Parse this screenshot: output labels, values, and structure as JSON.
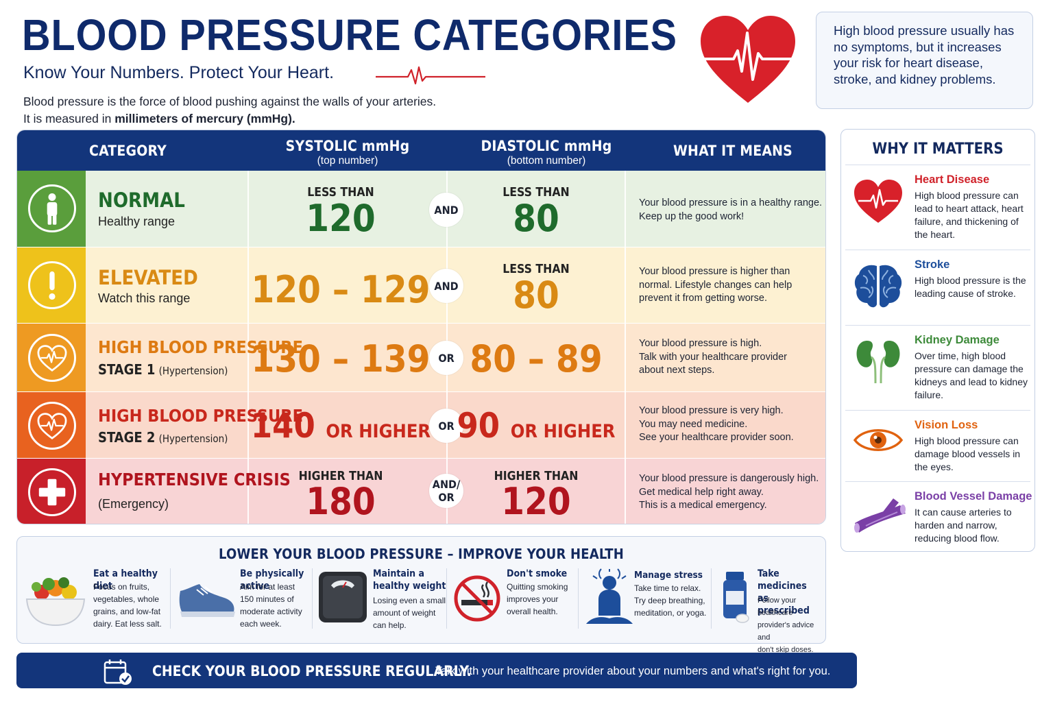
{
  "header": {
    "title": "BLOOD PRESSURE CATEGORIES",
    "subtitle": "Know Your Numbers. Protect Your Heart.",
    "intro_line1": "Blood pressure is the force of blood pushing against the walls of your arteries.",
    "intro_line2_pre": "It is measured in ",
    "intro_line2_bold": "millimeters of mercury (mmHg).",
    "note": "High blood pressure usually has no symptoms, but it increases your risk for heart disease, stroke, and kidney problems."
  },
  "table": {
    "headers": {
      "category": "CATEGORY",
      "systolic": "SYSTOLIC mmHg",
      "systolic_sub": "(top number)",
      "diastolic": "DIASTOLIC mmHg",
      "diastolic_sub": "(bottom number)",
      "means": "WHAT IT MEANS"
    },
    "rows": [
      {
        "name": "NORMAL",
        "sub": "Healthy range",
        "systolic_label": "LESS THAN",
        "systolic": "120",
        "join": "AND",
        "diastolic_label": "LESS THAN",
        "diastolic": "80",
        "means": [
          "Your blood pressure is in a healthy range.",
          "Keep up the good work!"
        ],
        "color": "#5a9e3c",
        "bg": "#e7f1e2",
        "text_color": "#1f6b2c"
      },
      {
        "name": "ELEVATED",
        "sub": "Watch this range",
        "systolic": "120 – 129",
        "join": "AND",
        "diastolic_label": "LESS THAN",
        "diastolic": "80",
        "means": [
          "Your blood pressure is higher than",
          "normal. Lifestyle changes can help",
          "prevent it from getting worse."
        ],
        "color": "#eec21b",
        "bg": "#fdf1d2",
        "text_color": "#d98a14"
      },
      {
        "name": "HIGH BLOOD PRESSURE",
        "sub_bold": "STAGE 1",
        "sub_small": "(Hypertension)",
        "systolic": "130 – 139",
        "join": "OR",
        "diastolic": "80 – 89",
        "means": [
          "Your blood pressure is high.",
          "Talk with your healthcare provider",
          "about next steps."
        ],
        "color": "#ee9a22",
        "bg": "#fde6cf",
        "text_color": "#dd7a12"
      },
      {
        "name": "HIGH BLOOD PRESSURE",
        "sub_bold": "STAGE 2",
        "sub_small": "(Hypertension)",
        "systolic": "140",
        "systolic_suffix": "OR HIGHER",
        "join": "OR",
        "diastolic": "90",
        "diastolic_suffix": "OR HIGHER",
        "means": [
          "Your blood pressure is very high.",
          "You may need medicine.",
          "See your healthcare provider soon."
        ],
        "color": "#e8621f",
        "bg": "#fad9cb",
        "text_color": "#c8281c"
      },
      {
        "name": "HYPERTENSIVE CRISIS",
        "sub": "(Emergency)",
        "systolic_label": "HIGHER THAN",
        "systolic": "180",
        "join_line1": "AND/",
        "join_line2": "OR",
        "diastolic_label": "HIGHER THAN",
        "diastolic": "120",
        "means": [
          "Your blood pressure is dangerously high.",
          "Get medical help right away.",
          "This is a medical emergency."
        ],
        "color": "#c8202a",
        "bg": "#f8d4d5",
        "text_color": "#b0141e"
      }
    ]
  },
  "why": {
    "title": "WHY IT MATTERS",
    "items": [
      {
        "title": "Heart Disease",
        "desc": "High blood pressure can lead to heart attack, heart failure, and thickening of the heart.",
        "color": "#d0222a",
        "icon": "heart-ekg-icon"
      },
      {
        "title": "Stroke",
        "desc": "High blood pressure is the leading cause of stroke.",
        "color": "#1d4e9b",
        "icon": "brain-icon"
      },
      {
        "title": "Kidney Damage",
        "desc": "Over time, high blood pressure can damage the kidneys and lead to kidney failure.",
        "color": "#3d8a3a",
        "icon": "kidneys-icon"
      },
      {
        "title": "Vision Loss",
        "desc": "High blood pressure can damage blood vessels in the eyes.",
        "color": "#e0620f",
        "icon": "eye-icon"
      },
      {
        "title": "Blood Vessel Damage",
        "desc": "It can cause arteries to harden and narrow, reducing blood flow.",
        "color": "#7a3fa6",
        "icon": "artery-icon"
      }
    ]
  },
  "lower": {
    "title": "LOWER YOUR BLOOD PRESSURE – IMPROVE YOUR HEALTH",
    "tips": [
      {
        "title": "Eat a healthy diet",
        "desc": [
          "Focus on fruits,",
          "vegetables, whole",
          "grains, and low-fat",
          "dairy. Eat less salt."
        ],
        "icon": "food-bowl-icon"
      },
      {
        "title": "Be physically active",
        "desc": [
          "Aim for at least",
          "150 minutes of",
          "moderate activity",
          "each week."
        ],
        "icon": "sneaker-icon"
      },
      {
        "title_lines": [
          "Maintain a",
          "healthy weight"
        ],
        "desc": [
          "Losing even a small",
          "amount of weight",
          "can help."
        ],
        "icon": "scale-icon"
      },
      {
        "title": "Don't smoke",
        "desc": [
          "Quitting smoking",
          "improves your",
          "overall health."
        ],
        "icon": "no-smoking-icon"
      },
      {
        "title": "Manage stress",
        "desc": [
          "Take time to relax.",
          "Try deep breathing,",
          "meditation, or yoga."
        ],
        "icon": "meditation-icon"
      },
      {
        "title_lines": [
          "Take medicines",
          "as prescribed"
        ],
        "desc": [
          "Follow your healthcare",
          "provider's advice and",
          "don't skip doses."
        ],
        "icon": "pill-bottle-icon"
      }
    ]
  },
  "footer": {
    "strong": "CHECK YOUR BLOOD PRESSURE REGULARLY.",
    "rest": "Talk with your healthcare provider about your numbers and what's right for you."
  }
}
